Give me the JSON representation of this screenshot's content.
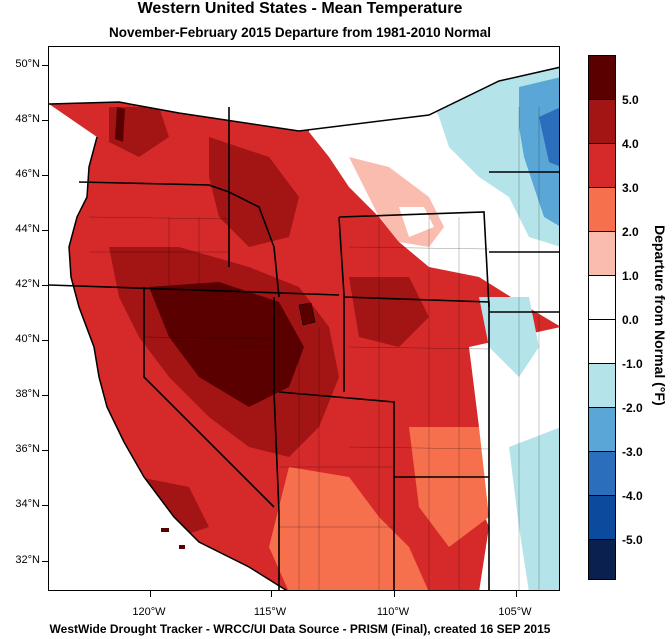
{
  "title": "Western United States - Mean Temperature",
  "subtitle": "November-February 2015  Departure from 1981-2010 Normal",
  "footer": "WestWide Drought Tracker - WRCC/UI  Data Source - PRISM (Final), created 16 SEP 2015",
  "legend": {
    "title": "Departure from Normal (°F)",
    "labels": [
      "5.0",
      "4.0",
      "3.0",
      "2.0",
      "1.0",
      "0.0",
      "-1.0",
      "-2.0",
      "-3.0",
      "-4.0",
      "-5.0"
    ],
    "colors": [
      "#5a0000",
      "#a31414",
      "#d62a2a",
      "#f7704e",
      "#fbbcb0",
      "#ffffff",
      "#ffffff",
      "#b4e4ea",
      "#5aa6d6",
      "#2a6ebc",
      "#0b4a9c",
      "#0a2150"
    ]
  },
  "axes": {
    "lat_labels": [
      "50°N",
      "48°N",
      "46°N",
      "44°N",
      "42°N",
      "40°N",
      "38°N",
      "36°N",
      "34°N",
      "32°N"
    ],
    "lon_labels": [
      "120°W",
      "115°W",
      "110°W",
      "105°W"
    ]
  }
}
